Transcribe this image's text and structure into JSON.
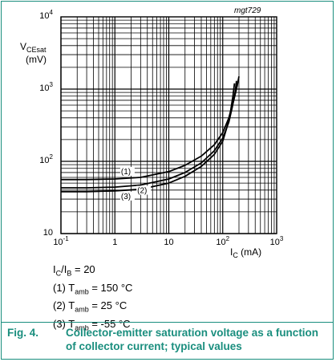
{
  "chart_data": {
    "type": "line",
    "title": "",
    "source_code": "mgt729",
    "x_axis": {
      "label_main": "I",
      "label_sub": "C",
      "label_unit": " (mA)",
      "scale": "log",
      "range": [
        0.1,
        1000
      ],
      "ticks": [
        0.1,
        1,
        10,
        100,
        1000
      ]
    },
    "y_axis": {
      "label_main": "V",
      "label_sub": "CEsat",
      "label_unit": "(mV)",
      "scale": "log",
      "range": [
        10,
        10000
      ],
      "ticks": [
        10,
        100,
        1000,
        10000
      ]
    },
    "tick_labels": {
      "x": [
        {
          "base": "10",
          "exp": "-1",
          "value": 0.1
        },
        {
          "base": "1",
          "exp": "",
          "value": 1
        },
        {
          "base": "10",
          "exp": "",
          "value": 10
        },
        {
          "base": "10",
          "exp": "2",
          "value": 100
        },
        {
          "base": "10",
          "exp": "3",
          "value": 1000
        }
      ],
      "y": [
        {
          "base": "10",
          "exp": "",
          "value": 10
        },
        {
          "base": "10",
          "exp": "2",
          "value": 100
        },
        {
          "base": "10",
          "exp": "3",
          "value": 1000
        },
        {
          "base": "10",
          "exp": "4",
          "value": 10000
        }
      ]
    },
    "grid": true,
    "series": [
      {
        "name": "(1)",
        "x": [
          0.1,
          0.3,
          1,
          3,
          10,
          20,
          40,
          70,
          100,
          130,
          160,
          185,
          200
        ],
        "y": [
          56,
          56,
          57,
          60,
          72,
          88,
          118,
          170,
          250,
          400,
          700,
          1100,
          1500
        ]
      },
      {
        "name": "(2)",
        "x": [
          0.1,
          0.3,
          1,
          3,
          10,
          20,
          40,
          70,
          100,
          130,
          150,
          170,
          180
        ],
        "y": [
          43,
          43,
          44,
          47,
          57,
          70,
          95,
          140,
          210,
          350,
          560,
          900,
          1300
        ]
      },
      {
        "name": "(3)",
        "x": [
          0.1,
          0.3,
          1,
          3,
          10,
          20,
          40,
          70,
          100,
          120,
          140,
          155,
          165
        ],
        "y": [
          38,
          38,
          39,
          41,
          50,
          62,
          85,
          125,
          190,
          300,
          500,
          800,
          1200
        ]
      }
    ],
    "annotations": [
      "(1)",
      "(3)",
      "(2)"
    ]
  },
  "conditions": {
    "ratio": {
      "a_main": "I",
      "a_sub": "C",
      "sep": "/",
      "b_main": "I",
      "b_sub": "B",
      "value": " = 20"
    },
    "lines": [
      {
        "prefix": "(1) T",
        "sub": "amb",
        "value": " = 150 °C"
      },
      {
        "prefix": "(2) T",
        "sub": "amb",
        "value": " = 25 °C"
      },
      {
        "prefix": "(3) T",
        "sub": "amb",
        "value": " = -55 °C"
      }
    ]
  },
  "caption": {
    "figure": "Fig. 4.",
    "text": "Collector-emitter saturation voltage as a function of collector current; typical values"
  },
  "colors": {
    "accent": "#1a8e7e",
    "ink": "#000000"
  }
}
